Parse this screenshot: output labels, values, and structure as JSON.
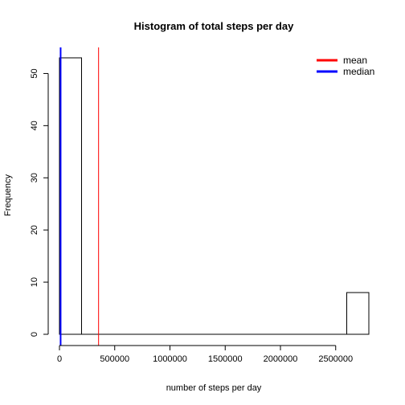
{
  "chart_data": {
    "type": "histogram",
    "title": "Histogram of total steps per day",
    "xlabel": "number of steps per day",
    "ylabel": "Frequency",
    "xlim": [
      0,
      2800000
    ],
    "ylim": [
      0,
      55
    ],
    "x_ticks": [
      0,
      500000,
      1000000,
      1500000,
      2000000,
      2500000
    ],
    "y_ticks": [
      0,
      10,
      20,
      30,
      40,
      50
    ],
    "bins": [
      {
        "start": 0,
        "end": 200000,
        "count": 53
      },
      {
        "start": 200000,
        "end": 400000,
        "count": 0
      },
      {
        "start": 400000,
        "end": 600000,
        "count": 0
      },
      {
        "start": 600000,
        "end": 800000,
        "count": 0
      },
      {
        "start": 800000,
        "end": 1000000,
        "count": 0
      },
      {
        "start": 1000000,
        "end": 1200000,
        "count": 0
      },
      {
        "start": 1200000,
        "end": 1400000,
        "count": 0
      },
      {
        "start": 1400000,
        "end": 1600000,
        "count": 0
      },
      {
        "start": 1600000,
        "end": 1800000,
        "count": 0
      },
      {
        "start": 1800000,
        "end": 2000000,
        "count": 0
      },
      {
        "start": 2000000,
        "end": 2200000,
        "count": 0
      },
      {
        "start": 2200000,
        "end": 2400000,
        "count": 0
      },
      {
        "start": 2400000,
        "end": 2600000,
        "count": 0
      },
      {
        "start": 2600000,
        "end": 2800000,
        "count": 8
      }
    ],
    "reference_lines": [
      {
        "name": "mean",
        "value": 354000,
        "color": "#ff0000"
      },
      {
        "name": "median",
        "value": 10400,
        "color": "#0000ff"
      }
    ],
    "legend": {
      "position": "top-right",
      "entries": [
        {
          "label": "mean",
          "color": "#ff0000"
        },
        {
          "label": "median",
          "color": "#0000ff"
        }
      ]
    },
    "grid": false
  }
}
